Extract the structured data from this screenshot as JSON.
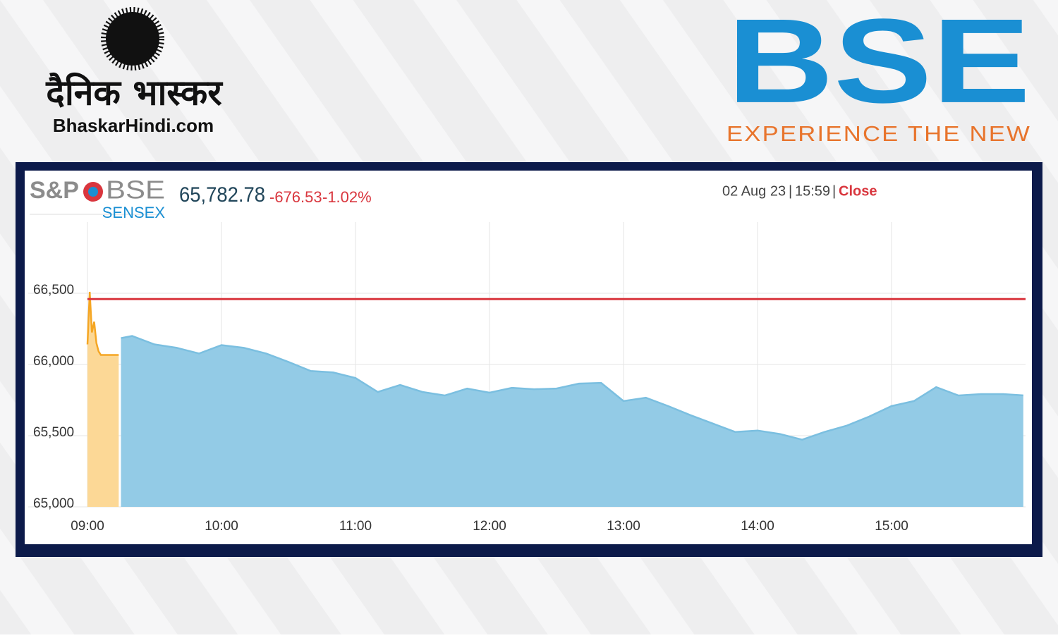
{
  "header": {
    "publisher_name": "दैनिक भास्कर",
    "publisher_site": "BhaskarHindi.com",
    "exchange_logo": "BSE",
    "exchange_tagline": "EXPERIENCE THE NEW"
  },
  "chart_data": {
    "type": "area",
    "index_brand": "S&P",
    "index_exchange": "BSE",
    "index_name": "SENSEX",
    "last_price": "65,782.78",
    "change": "-676.53",
    "change_percent": "-1.02%",
    "date": "02 Aug 23",
    "time": "15:59",
    "status": "Close",
    "xlim": [
      "09:00",
      "16:00"
    ],
    "xticks": [
      "09:00",
      "10:00",
      "11:00",
      "12:00",
      "13:00",
      "14:00",
      "15:00"
    ],
    "ylim": [
      65000,
      67000
    ],
    "yticks": [
      {
        "value": 65000,
        "label": "65,000"
      },
      {
        "value": 65500,
        "label": "65,500"
      },
      {
        "value": 66000,
        "label": "66,000"
      },
      {
        "value": 66500,
        "label": "66,500"
      }
    ],
    "grid": true,
    "reference_line": {
      "value": 66459.31,
      "color": "#d9363e"
    },
    "series": [
      {
        "color": "#f5a623",
        "fill": "#fcd896",
        "x": [
          "09:00",
          "09:01",
          "09:02",
          "09:03",
          "09:04",
          "09:05",
          "09:06",
          "09:08",
          "09:14"
        ],
        "values": [
          66141,
          66510,
          66225,
          66300,
          66150,
          66092,
          66067,
          66067,
          66067
        ]
      },
      {
        "color": "#7bbfe0",
        "fill": "#93cbe6",
        "x": [
          "09:15",
          "09:20",
          "09:30",
          "09:40",
          "09:50",
          "10:00",
          "10:10",
          "10:20",
          "10:30",
          "10:40",
          "10:50",
          "11:00",
          "11:10",
          "11:20",
          "11:30",
          "11:40",
          "11:50",
          "12:00",
          "12:10",
          "12:20",
          "12:30",
          "12:40",
          "12:50",
          "13:00",
          "13:10",
          "13:20",
          "13:30",
          "13:40",
          "13:50",
          "14:00",
          "14:10",
          "14:20",
          "14:30",
          "14:40",
          "14:50",
          "15:00",
          "15:10",
          "15:20",
          "15:30",
          "15:40",
          "15:50",
          "15:59"
        ],
        "values": [
          66185,
          66200,
          66141,
          66117,
          66077,
          66136,
          66117,
          66077,
          66018,
          65954,
          65944,
          65905,
          65807,
          65856,
          65807,
          65782,
          65831,
          65802,
          65836,
          65826,
          65831,
          65866,
          65871,
          65743,
          65767,
          65708,
          65644,
          65585,
          65526,
          65536,
          65512,
          65472,
          65526,
          65571,
          65634,
          65708,
          65743,
          65841,
          65782,
          65792,
          65792,
          65782.78
        ]
      }
    ]
  }
}
